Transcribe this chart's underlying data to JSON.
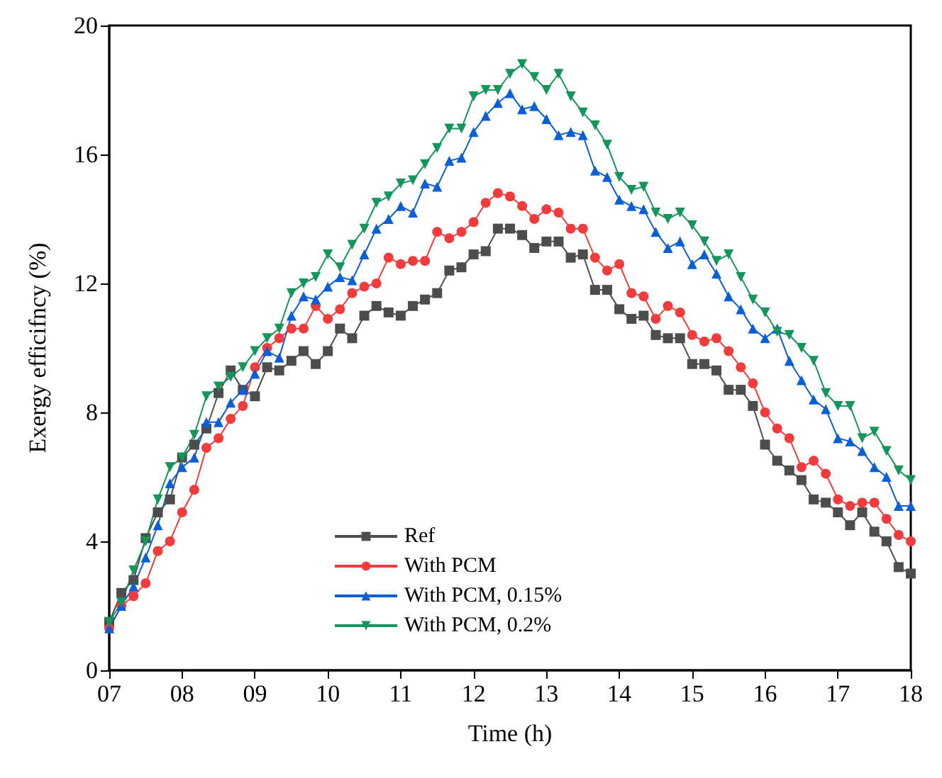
{
  "chart_data": {
    "type": "line",
    "xlabel": "Time (h)",
    "ylabel": "Exergy efficifncy (%)",
    "xlim": [
      7,
      18
    ],
    "xticks": [
      {
        "value": 7,
        "label": "07"
      },
      {
        "value": 8,
        "label": "08"
      },
      {
        "value": 9,
        "label": "09"
      },
      10,
      11,
      12,
      13,
      14,
      15,
      16,
      17,
      18
    ],
    "ylim": [
      0,
      20
    ],
    "yticks": [
      0,
      4,
      8,
      12,
      16,
      20
    ],
    "grid": false,
    "legend": "bottom",
    "x": [
      7,
      7.1667,
      7.3333,
      7.5,
      7.6667,
      7.8333,
      8,
      8.1667,
      8.3333,
      8.5,
      8.6667,
      8.8333,
      9,
      9.1667,
      9.3333,
      9.5,
      9.6667,
      9.8333,
      10,
      10.1667,
      10.3333,
      10.5,
      10.6667,
      10.8333,
      11,
      11.1667,
      11.3333,
      11.5,
      11.6667,
      11.8333,
      12,
      12.1667,
      12.3333,
      12.5,
      12.6667,
      12.8333,
      13,
      13.1667,
      13.3333,
      13.5,
      13.6667,
      13.8333,
      14,
      14.1667,
      14.3333,
      14.5,
      14.6667,
      14.8333,
      15,
      15.1667,
      15.3333,
      15.5,
      15.6667,
      15.8333,
      16,
      16.1667,
      16.3333,
      16.5,
      16.6667,
      16.8333,
      17,
      17.1667,
      17.3333,
      17.5,
      17.6667,
      17.8333,
      18
    ],
    "series": [
      {
        "name": "Ref",
        "color": "#4d4d4d",
        "marker": "square",
        "values": [
          1.5,
          2.4,
          2.8,
          4.1,
          4.9,
          5.3,
          6.6,
          7.0,
          7.5,
          8.6,
          9.3,
          8.7,
          8.5,
          9.4,
          9.3,
          9.6,
          9.9,
          9.5,
          9.9,
          10.6,
          10.3,
          11.0,
          11.3,
          11.1,
          11.0,
          11.3,
          11.5,
          11.7,
          12.4,
          12.5,
          12.9,
          13.0,
          13.7,
          13.7,
          13.5,
          13.1,
          13.3,
          13.3,
          12.8,
          12.9,
          11.8,
          11.8,
          11.2,
          10.9,
          11.0,
          10.4,
          10.3,
          10.3,
          9.5,
          9.5,
          9.3,
          8.7,
          8.7,
          8.2,
          7.0,
          6.5,
          6.2,
          5.9,
          5.3,
          5.2,
          4.9,
          4.5,
          4.9,
          4.3,
          4.0,
          3.2,
          3.0
        ]
      },
      {
        "name": "With PCM",
        "color": "#f03c3c",
        "marker": "circle",
        "values": [
          1.3,
          2.0,
          2.3,
          2.7,
          3.7,
          4.0,
          4.9,
          5.6,
          6.9,
          7.2,
          7.8,
          8.2,
          9.4,
          10.0,
          10.3,
          10.6,
          10.6,
          11.3,
          10.9,
          11.2,
          11.7,
          11.9,
          12.0,
          12.8,
          12.6,
          12.7,
          12.7,
          13.6,
          13.4,
          13.6,
          13.9,
          14.5,
          14.8,
          14.7,
          14.4,
          14.0,
          14.3,
          14.2,
          13.7,
          13.7,
          12.8,
          12.4,
          12.6,
          11.7,
          11.6,
          10.9,
          11.3,
          11.1,
          10.4,
          10.2,
          10.3,
          9.9,
          9.4,
          8.9,
          8.0,
          7.5,
          7.2,
          6.3,
          6.5,
          6.1,
          5.3,
          5.1,
          5.2,
          5.2,
          4.7,
          4.2,
          4.0
        ]
      },
      {
        "name": "With PCM, 0.15%",
        "color": "#0a5fd6",
        "marker": "triangle",
        "values": [
          1.3,
          2.0,
          2.6,
          3.5,
          4.5,
          5.8,
          6.3,
          6.6,
          7.7,
          7.7,
          8.3,
          8.7,
          9.2,
          9.9,
          9.7,
          11.0,
          11.6,
          11.5,
          11.9,
          12.2,
          12.1,
          12.9,
          13.7,
          14.0,
          14.4,
          14.2,
          15.1,
          15.0,
          15.8,
          15.9,
          16.7,
          17.2,
          17.6,
          17.9,
          17.4,
          17.5,
          17.1,
          16.6,
          16.7,
          16.6,
          15.5,
          15.3,
          14.6,
          14.4,
          14.3,
          13.6,
          13.1,
          13.3,
          12.6,
          12.9,
          12.3,
          11.6,
          11.2,
          10.6,
          10.3,
          10.6,
          9.6,
          9.0,
          8.4,
          8.1,
          7.2,
          7.1,
          6.8,
          6.3,
          6.0,
          5.1,
          5.1
        ]
      },
      {
        "name": "With PCM, 0.2%",
        "color": "#14965a",
        "marker": "triangle-down",
        "values": [
          1.5,
          2.1,
          3.1,
          4.0,
          5.3,
          6.3,
          6.6,
          7.3,
          8.5,
          8.8,
          9.1,
          9.4,
          9.9,
          10.3,
          10.6,
          11.7,
          12.0,
          12.2,
          12.9,
          12.5,
          13.2,
          13.7,
          14.5,
          14.7,
          15.1,
          15.2,
          15.7,
          16.2,
          16.8,
          16.8,
          17.8,
          18.0,
          18.0,
          18.5,
          18.8,
          18.4,
          18.0,
          18.5,
          17.8,
          17.3,
          16.9,
          16.3,
          15.3,
          14.9,
          15.0,
          14.2,
          14.0,
          14.2,
          13.8,
          13.3,
          12.7,
          12.9,
          12.2,
          11.5,
          11.1,
          10.5,
          10.4,
          10.0,
          9.6,
          8.6,
          8.2,
          8.2,
          7.2,
          7.4,
          6.8,
          6.2,
          5.9
        ]
      }
    ]
  }
}
